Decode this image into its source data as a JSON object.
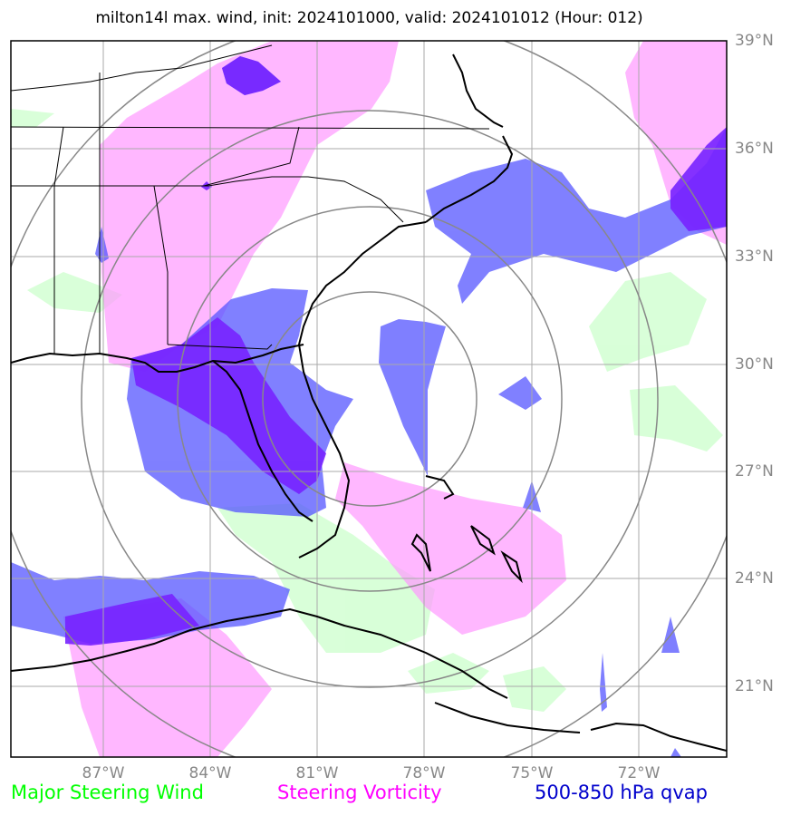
{
  "title": "milton14l max. wind, init: 2024101000, valid: 2024101012 (Hour: 012)",
  "lat_labels": [
    "39°N",
    "36°N",
    "33°N",
    "30°N",
    "27°N",
    "24°N",
    "21°N"
  ],
  "lon_labels": [
    "87°W",
    "84°W",
    "81°W",
    "78°W",
    "75°W",
    "72°W"
  ],
  "legend": {
    "wind": "Major Steering Wind",
    "vorticity": "Steering Vorticity",
    "qvap": "500-850 hPa qvap"
  },
  "colors": {
    "wind": "#00ff00",
    "vorticity": "#ff00ff",
    "qvap": "#0000cc",
    "grid": "#aaaaaa",
    "labels": "#888888"
  }
}
